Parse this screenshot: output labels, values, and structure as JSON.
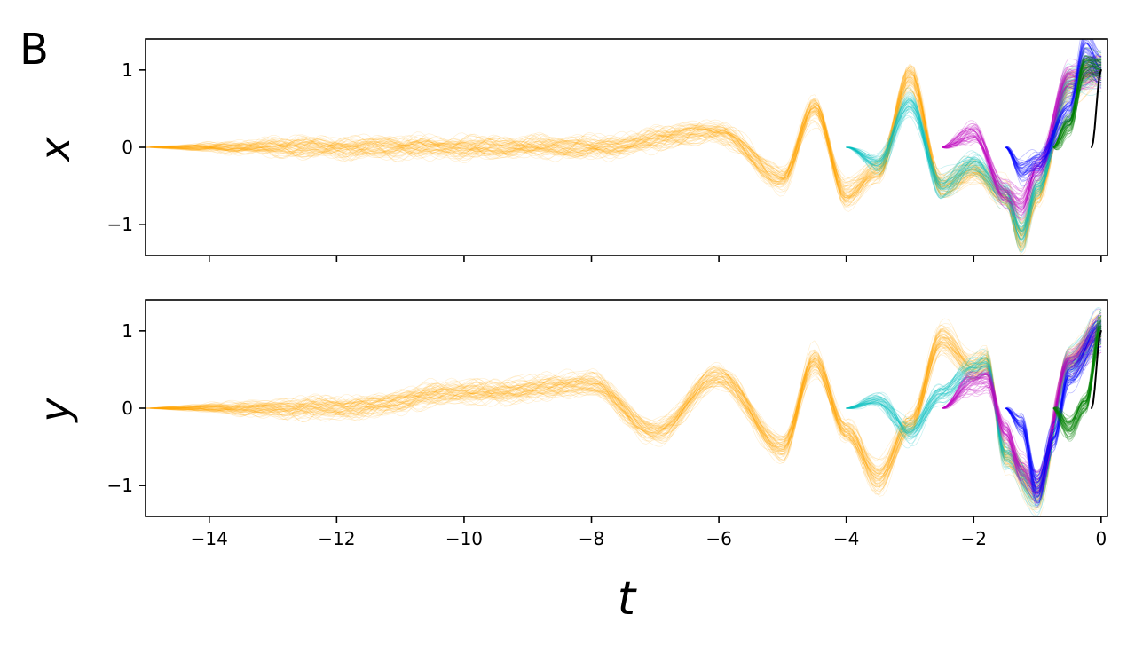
{
  "panel_label": "B",
  "chart_data": [
    {
      "type": "line",
      "panel": "top",
      "ylabel": "x",
      "xlabel": "",
      "xlim": [
        -15,
        0.1
      ],
      "ylim": [
        -1.4,
        1.4
      ],
      "xticks": [
        -14,
        -12,
        -10,
        -8,
        -6,
        -4,
        -2,
        0
      ],
      "show_xtick_labels": false,
      "yticks": [
        -1,
        0,
        1
      ],
      "ytick_labels": [
        "−1",
        "0",
        "1"
      ],
      "grid": false,
      "colors": {
        "orange": "#ffa500",
        "cyan": "#00bfbf",
        "magenta": "#bf00bf",
        "blue": "#0000ff",
        "green": "#008000",
        "black": "#000000"
      },
      "series": [
        {
          "color": "orange",
          "t_start": -15,
          "t_end": 0,
          "samples": 100,
          "mean_x": [
            -15,
            -12,
            -10,
            -8,
            -6,
            -5,
            -4.5,
            -4,
            -3.5,
            -3,
            -2.5,
            -2,
            -1.5,
            -1.25,
            -1,
            -0.5,
            0
          ],
          "mean_y": [
            0,
            0,
            0,
            0,
            0.2,
            -0.4,
            0.5,
            -0.6,
            -0.3,
            0.9,
            -0.5,
            -0.3,
            -0.6,
            -1.15,
            -0.6,
            0.8,
            1.0
          ]
        },
        {
          "color": "cyan",
          "t_start": -4,
          "t_end": 0,
          "samples": 100,
          "mean_x": [
            -4,
            -3.5,
            -3,
            -2.5,
            -2,
            -1.5,
            -1.25,
            -1,
            -0.5,
            0
          ],
          "mean_y": [
            0,
            -0.2,
            0.55,
            -0.5,
            -0.2,
            -0.6,
            -1.1,
            -0.5,
            0.8,
            1.0
          ]
        },
        {
          "color": "magenta",
          "t_start": -2.5,
          "t_end": 0,
          "samples": 100,
          "mean_x": [
            -2.5,
            -2,
            -1.5,
            -1.25,
            -1,
            -0.5,
            0
          ],
          "mean_y": [
            0,
            0.2,
            -0.6,
            -0.75,
            -0.3,
            0.9,
            1.0
          ]
        },
        {
          "color": "blue",
          "t_start": -1.5,
          "t_end": 0,
          "samples": 100,
          "mean_x": [
            -1.5,
            -1.25,
            -1,
            -0.5,
            -0.25,
            0
          ],
          "mean_y": [
            0,
            -0.3,
            -0.2,
            0.5,
            1.3,
            1.0
          ]
        },
        {
          "color": "green",
          "t_start": -0.75,
          "t_end": 0,
          "samples": 100,
          "mean_x": [
            -0.75,
            -0.5,
            -0.25,
            0
          ],
          "mean_y": [
            0,
            0.3,
            1.05,
            1.0
          ]
        },
        {
          "color": "black",
          "t_start": -0.15,
          "t_end": 0,
          "samples": 1,
          "mean_x": [
            -0.15,
            0
          ],
          "mean_y": [
            0,
            1.0
          ]
        }
      ]
    },
    {
      "type": "line",
      "panel": "bottom",
      "ylabel": "y",
      "xlabel": "t",
      "xlim": [
        -15,
        0.1
      ],
      "ylim": [
        -1.4,
        1.4
      ],
      "xticks": [
        -14,
        -12,
        -10,
        -8,
        -6,
        -4,
        -2,
        0
      ],
      "xtick_labels": [
        "−14",
        "−12",
        "−10",
        "−8",
        "−6",
        "−4",
        "−2",
        "0"
      ],
      "show_xtick_labels": true,
      "yticks": [
        -1,
        0,
        1
      ],
      "ytick_labels": [
        "−1",
        "0",
        "1"
      ],
      "grid": false,
      "series": [
        {
          "color": "orange",
          "t_start": -15,
          "t_end": 0,
          "samples": 100,
          "mean_x": [
            -15,
            -12,
            -10,
            -8,
            -7,
            -6,
            -5,
            -4.5,
            -4,
            -3.5,
            -3,
            -2.5,
            -2,
            -1.8,
            -1.5,
            -1,
            -0.5,
            0
          ],
          "mean_y": [
            0,
            0,
            0.2,
            0.3,
            -0.3,
            0.4,
            -0.5,
            0.6,
            -0.3,
            -0.9,
            -0.2,
            0.9,
            0.5,
            0.6,
            -0.6,
            -1.1,
            0.6,
            1.0
          ]
        },
        {
          "color": "cyan",
          "t_start": -4,
          "t_end": 0,
          "samples": 100,
          "mean_x": [
            -4,
            -3.5,
            -3,
            -2.5,
            -2,
            -1.8,
            -1.5,
            -1,
            -0.5,
            0
          ],
          "mean_y": [
            0,
            0.1,
            -0.3,
            0.2,
            0.5,
            0.55,
            -0.6,
            -1.1,
            0.6,
            1.0
          ]
        },
        {
          "color": "magenta",
          "t_start": -2.5,
          "t_end": 0,
          "samples": 100,
          "mean_x": [
            -2.5,
            -2,
            -1.8,
            -1.5,
            -1.25,
            -1,
            -0.5,
            0
          ],
          "mean_y": [
            0,
            0.35,
            0.4,
            -0.3,
            -0.8,
            -1.0,
            0.6,
            1.0
          ]
        },
        {
          "color": "blue",
          "t_start": -1.5,
          "t_end": 0,
          "samples": 100,
          "mean_x": [
            -1.5,
            -1.25,
            -1,
            -0.75,
            -0.5,
            0
          ],
          "mean_y": [
            0,
            -0.2,
            -1.05,
            -0.4,
            0.4,
            1.0
          ]
        },
        {
          "color": "green",
          "t_start": -0.75,
          "t_end": 0,
          "samples": 100,
          "mean_x": [
            -0.75,
            -0.5,
            -0.25,
            0
          ],
          "mean_y": [
            0,
            -0.25,
            0.05,
            1.0
          ]
        },
        {
          "color": "black",
          "t_start": -0.15,
          "t_end": 0,
          "samples": 1,
          "mean_x": [
            -0.15,
            0
          ],
          "mean_y": [
            0,
            1.0
          ]
        }
      ]
    }
  ]
}
